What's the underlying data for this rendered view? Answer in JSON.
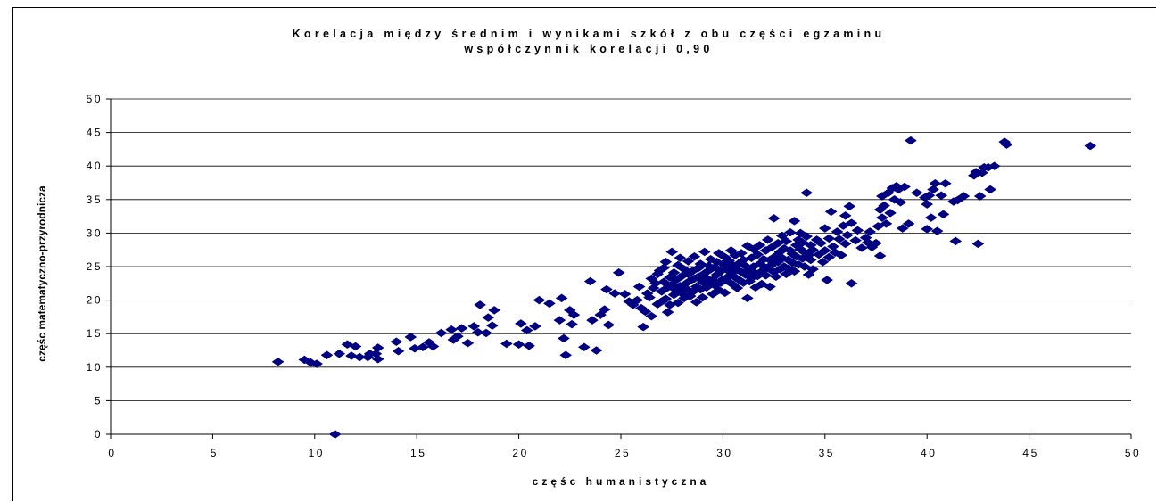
{
  "chart_data": {
    "type": "scatter",
    "title": "Korelacja między średnim i wynikami szkół z obu części egzaminu",
    "subtitle": "współczynnik korelacji 0,90",
    "xlabel": "częśc humanistyczna",
    "ylabel": "częśc matematyczno-przyrodnicza",
    "xlim": [
      0,
      50
    ],
    "ylim": [
      0,
      50
    ],
    "x_ticks": [
      "0",
      "5",
      "10",
      "15",
      "20",
      "25",
      "30",
      "35",
      "40",
      "45",
      "50"
    ],
    "y_ticks": [
      "0",
      "5",
      "10",
      "15",
      "20",
      "25",
      "30",
      "35",
      "40",
      "45",
      "50"
    ],
    "grid": "horizontal",
    "legend": "none",
    "marker": "diamond",
    "marker_color": "#000080",
    "points": [
      [
        8.2,
        10.8
      ],
      [
        9.5,
        11.1
      ],
      [
        9.8,
        10.7
      ],
      [
        10.1,
        10.5
      ],
      [
        10.6,
        11.8
      ],
      [
        11.0,
        0.0
      ],
      [
        11.2,
        12.0
      ],
      [
        11.6,
        13.4
      ],
      [
        11.8,
        11.7
      ],
      [
        12.0,
        13.1
      ],
      [
        12.2,
        11.5
      ],
      [
        12.6,
        11.5
      ],
      [
        12.7,
        12.0
      ],
      [
        13.0,
        12.0
      ],
      [
        13.1,
        11.2
      ],
      [
        13.1,
        12.9
      ],
      [
        14.0,
        13.8
      ],
      [
        14.1,
        12.4
      ],
      [
        14.7,
        14.5
      ],
      [
        14.9,
        12.8
      ],
      [
        15.3,
        13.0
      ],
      [
        15.6,
        13.7
      ],
      [
        15.8,
        13.1
      ],
      [
        16.2,
        15.1
      ],
      [
        16.7,
        15.6
      ],
      [
        16.8,
        14.1
      ],
      [
        17.0,
        14.6
      ],
      [
        17.2,
        15.8
      ],
      [
        17.5,
        13.6
      ],
      [
        17.8,
        16.1
      ],
      [
        18.0,
        15.2
      ],
      [
        18.1,
        19.3
      ],
      [
        18.4,
        15.1
      ],
      [
        18.5,
        17.4
      ],
      [
        18.7,
        16.2
      ],
      [
        18.8,
        18.5
      ],
      [
        19.4,
        13.5
      ],
      [
        20.0,
        13.4
      ],
      [
        20.1,
        16.5
      ],
      [
        20.4,
        15.5
      ],
      [
        20.5,
        13.2
      ],
      [
        20.8,
        16.1
      ],
      [
        21.0,
        20.0
      ],
      [
        21.5,
        19.5
      ],
      [
        22.0,
        17.0
      ],
      [
        22.1,
        20.3
      ],
      [
        22.2,
        14.3
      ],
      [
        22.3,
        11.8
      ],
      [
        22.5,
        18.5
      ],
      [
        22.6,
        16.4
      ],
      [
        22.7,
        17.8
      ],
      [
        23.2,
        13.0
      ],
      [
        23.5,
        22.8
      ],
      [
        23.6,
        17.0
      ],
      [
        23.8,
        12.5
      ],
      [
        24.0,
        17.8
      ],
      [
        24.2,
        18.6
      ],
      [
        24.3,
        21.6
      ],
      [
        24.4,
        16.3
      ],
      [
        24.7,
        21.0
      ],
      [
        24.9,
        24.1
      ],
      [
        25.2,
        20.9
      ],
      [
        25.4,
        19.8
      ],
      [
        25.6,
        19.3
      ],
      [
        25.8,
        20.0
      ],
      [
        25.9,
        22.0
      ],
      [
        26.0,
        18.8
      ],
      [
        26.1,
        16.0
      ],
      [
        26.2,
        18.3
      ],
      [
        26.3,
        21.0
      ],
      [
        26.4,
        20.4
      ],
      [
        26.5,
        23.2
      ],
      [
        26.5,
        17.6
      ],
      [
        26.6,
        21.8
      ],
      [
        26.7,
        22.5
      ],
      [
        26.8,
        23.9
      ],
      [
        26.8,
        19.4
      ],
      [
        26.9,
        24.4
      ],
      [
        27.0,
        21.3
      ],
      [
        27.0,
        19.8
      ],
      [
        27.1,
        22.7
      ],
      [
        27.1,
        24.8
      ],
      [
        27.2,
        20.2
      ],
      [
        27.2,
        25.7
      ],
      [
        27.3,
        18.2
      ],
      [
        27.3,
        21.9
      ],
      [
        27.4,
        23.4
      ],
      [
        27.4,
        19.3
      ],
      [
        27.5,
        22.3
      ],
      [
        27.5,
        27.2
      ],
      [
        27.6,
        20.8
      ],
      [
        27.6,
        24.1
      ],
      [
        27.7,
        21.5
      ],
      [
        27.7,
        23.0
      ],
      [
        27.8,
        25.2
      ],
      [
        27.8,
        19.6
      ],
      [
        27.9,
        22.1
      ],
      [
        27.9,
        26.3
      ],
      [
        28.0,
        21.0
      ],
      [
        28.0,
        23.6
      ],
      [
        28.1,
        20.3
      ],
      [
        28.1,
        24.6
      ],
      [
        28.2,
        22.5
      ],
      [
        28.2,
        21.7
      ],
      [
        28.3,
        23.9
      ],
      [
        28.3,
        25.8
      ],
      [
        28.4,
        20.6
      ],
      [
        28.4,
        22.9
      ],
      [
        28.5,
        24.3
      ],
      [
        28.5,
        21.2
      ],
      [
        28.6,
        23.2
      ],
      [
        28.6,
        26.5
      ],
      [
        28.7,
        22.0
      ],
      [
        28.7,
        19.7
      ],
      [
        28.8,
        24.8
      ],
      [
        28.8,
        23.5
      ],
      [
        28.9,
        21.6
      ],
      [
        28.9,
        25.4
      ],
      [
        29.0,
        22.7
      ],
      [
        29.0,
        20.4
      ],
      [
        29.1,
        24.0
      ],
      [
        29.1,
        27.2
      ],
      [
        29.2,
        23.3
      ],
      [
        29.2,
        21.9
      ],
      [
        29.3,
        25.1
      ],
      [
        29.3,
        22.4
      ],
      [
        29.4,
        24.6
      ],
      [
        29.4,
        26.1
      ],
      [
        29.5,
        23.0
      ],
      [
        29.5,
        20.9
      ],
      [
        29.6,
        24.9
      ],
      [
        29.6,
        22.2
      ],
      [
        29.7,
        25.7
      ],
      [
        29.7,
        23.8
      ],
      [
        29.8,
        21.5
      ],
      [
        29.8,
        27.0
      ],
      [
        29.9,
        24.3
      ],
      [
        29.9,
        22.6
      ],
      [
        30.0,
        25.4
      ],
      [
        30.0,
        23.1
      ],
      [
        30.1,
        26.4
      ],
      [
        30.1,
        21.1
      ],
      [
        30.2,
        24.7
      ],
      [
        30.2,
        22.9
      ],
      [
        30.3,
        25.9
      ],
      [
        30.3,
        23.6
      ],
      [
        30.4,
        27.4
      ],
      [
        30.4,
        24.1
      ],
      [
        30.5,
        22.3
      ],
      [
        30.5,
        25.2
      ],
      [
        30.6,
        23.4
      ],
      [
        30.6,
        26.7
      ],
      [
        30.7,
        24.5
      ],
      [
        30.7,
        21.8
      ],
      [
        30.8,
        25.5
      ],
      [
        30.8,
        23.0
      ],
      [
        30.9,
        27.0
      ],
      [
        30.9,
        24.2
      ],
      [
        31.0,
        22.6
      ],
      [
        31.0,
        26.0
      ],
      [
        31.1,
        23.8
      ],
      [
        31.1,
        25.1
      ],
      [
        31.2,
        20.3
      ],
      [
        31.2,
        28.1
      ],
      [
        31.3,
        24.6
      ],
      [
        31.3,
        22.8
      ],
      [
        31.4,
        26.3
      ],
      [
        31.4,
        23.3
      ],
      [
        31.5,
        25.0
      ],
      [
        31.5,
        27.6
      ],
      [
        31.6,
        24.0
      ],
      [
        31.6,
        21.9
      ],
      [
        31.7,
        26.8
      ],
      [
        31.7,
        23.6
      ],
      [
        31.8,
        25.4
      ],
      [
        31.8,
        28.2
      ],
      [
        31.9,
        24.3
      ],
      [
        31.9,
        22.4
      ],
      [
        32.0,
        26.1
      ],
      [
        32.0,
        25.0
      ],
      [
        32.1,
        23.7
      ],
      [
        32.1,
        27.4
      ],
      [
        32.2,
        24.8
      ],
      [
        32.2,
        29.0
      ],
      [
        32.3,
        26.0
      ],
      [
        32.3,
        22.0
      ],
      [
        32.4,
        25.3
      ],
      [
        32.4,
        27.9
      ],
      [
        32.5,
        24.2
      ],
      [
        32.5,
        32.2
      ],
      [
        32.6,
        26.6
      ],
      [
        32.6,
        23.5
      ],
      [
        32.7,
        28.5
      ],
      [
        32.7,
        25.7
      ],
      [
        32.8,
        27.2
      ],
      [
        32.8,
        24.6
      ],
      [
        32.9,
        26.3
      ],
      [
        32.9,
        29.6
      ],
      [
        33.0,
        25.0
      ],
      [
        33.0,
        27.7
      ],
      [
        33.1,
        23.9
      ],
      [
        33.1,
        28.8
      ],
      [
        33.2,
        26.0
      ],
      [
        33.2,
        24.7
      ],
      [
        33.3,
        27.4
      ],
      [
        33.3,
        30.1
      ],
      [
        33.4,
        25.6
      ],
      [
        33.4,
        26.9
      ],
      [
        33.5,
        31.8
      ],
      [
        33.5,
        24.3
      ],
      [
        33.6,
        28.2
      ],
      [
        33.6,
        26.5
      ],
      [
        33.7,
        29.0
      ],
      [
        33.7,
        25.3
      ],
      [
        33.8,
        27.6
      ],
      [
        33.8,
        30.0
      ],
      [
        33.9,
        26.2
      ],
      [
        33.9,
        28.6
      ],
      [
        34.0,
        25.0
      ],
      [
        34.0,
        27.1
      ],
      [
        34.1,
        29.5
      ],
      [
        34.1,
        36.0
      ],
      [
        34.2,
        26.7
      ],
      [
        34.2,
        23.8
      ],
      [
        34.3,
        28.2
      ],
      [
        34.3,
        26.0
      ],
      [
        34.4,
        27.5
      ],
      [
        34.4,
        24.6
      ],
      [
        34.6,
        29.0
      ],
      [
        34.7,
        26.8
      ],
      [
        34.8,
        28.5
      ],
      [
        34.9,
        25.7
      ],
      [
        35.0,
        30.7
      ],
      [
        35.0,
        27.4
      ],
      [
        35.1,
        23.0
      ],
      [
        35.2,
        29.2
      ],
      [
        35.2,
        26.4
      ],
      [
        35.3,
        33.2
      ],
      [
        35.4,
        28.0
      ],
      [
        35.5,
        27.1
      ],
      [
        35.6,
        30.2
      ],
      [
        35.7,
        29.1
      ],
      [
        35.8,
        26.7
      ],
      [
        35.9,
        31.1
      ],
      [
        36.0,
        28.4
      ],
      [
        36.0,
        32.6
      ],
      [
        36.1,
        29.7
      ],
      [
        36.2,
        34.0
      ],
      [
        36.3,
        22.5
      ],
      [
        36.3,
        31.5
      ],
      [
        36.5,
        28.9
      ],
      [
        36.6,
        30.4
      ],
      [
        36.8,
        27.8
      ],
      [
        37.0,
        29.3
      ],
      [
        37.1,
        28.6
      ],
      [
        37.2,
        30.2
      ],
      [
        37.3,
        27.9
      ],
      [
        37.5,
        28.5
      ],
      [
        37.6,
        31.0
      ],
      [
        37.7,
        26.6
      ],
      [
        37.7,
        33.5
      ],
      [
        37.8,
        35.5
      ],
      [
        37.8,
        32.3
      ],
      [
        37.9,
        34.1
      ],
      [
        38.0,
        31.4
      ],
      [
        38.1,
        36.0
      ],
      [
        38.2,
        33.0
      ],
      [
        38.3,
        36.7
      ],
      [
        38.4,
        35.0
      ],
      [
        38.5,
        37.0
      ],
      [
        38.6,
        36.5
      ],
      [
        38.7,
        34.6
      ],
      [
        38.8,
        30.7
      ],
      [
        38.9,
        36.9
      ],
      [
        39.1,
        31.4
      ],
      [
        39.2,
        43.8
      ],
      [
        39.5,
        36.0
      ],
      [
        39.9,
        35.3
      ],
      [
        40.0,
        30.6
      ],
      [
        40.0,
        34.3
      ],
      [
        40.1,
        35.6
      ],
      [
        40.2,
        32.3
      ],
      [
        40.3,
        36.5
      ],
      [
        40.4,
        37.4
      ],
      [
        40.5,
        30.3
      ],
      [
        40.7,
        35.6
      ],
      [
        40.8,
        32.8
      ],
      [
        40.9,
        37.4
      ],
      [
        41.3,
        34.7
      ],
      [
        41.4,
        28.8
      ],
      [
        41.5,
        34.9
      ],
      [
        41.8,
        35.5
      ],
      [
        42.3,
        38.6
      ],
      [
        42.4,
        39.1
      ],
      [
        42.5,
        28.4
      ],
      [
        42.6,
        35.5
      ],
      [
        42.7,
        39.0
      ],
      [
        42.8,
        39.8
      ],
      [
        43.0,
        39.8
      ],
      [
        43.1,
        36.5
      ],
      [
        43.3,
        40.0
      ],
      [
        43.8,
        43.6
      ],
      [
        43.9,
        43.2
      ],
      [
        48.0,
        43.0
      ]
    ]
  }
}
